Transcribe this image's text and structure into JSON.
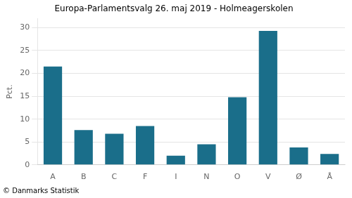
{
  "chart_data": {
    "type": "bar",
    "title": "Europa-Parlamentsvalg 26. maj 2019 - Holmeagerskolen",
    "ylabel": "Pct.",
    "annotations": [
      "© Danmarks Statistik"
    ],
    "categories": [
      "A",
      "B",
      "C",
      "F",
      "I",
      "N",
      "O",
      "V",
      "Ø",
      "Å"
    ],
    "values": [
      21.5,
      7.6,
      6.8,
      8.5,
      2.0,
      4.5,
      14.8,
      29.3,
      3.8,
      2.4
    ],
    "color": "#1a6e8a",
    "ylim": [
      0,
      32
    ],
    "yticks": [
      0,
      5,
      10,
      15,
      20,
      25,
      30
    ],
    "grid": true
  }
}
